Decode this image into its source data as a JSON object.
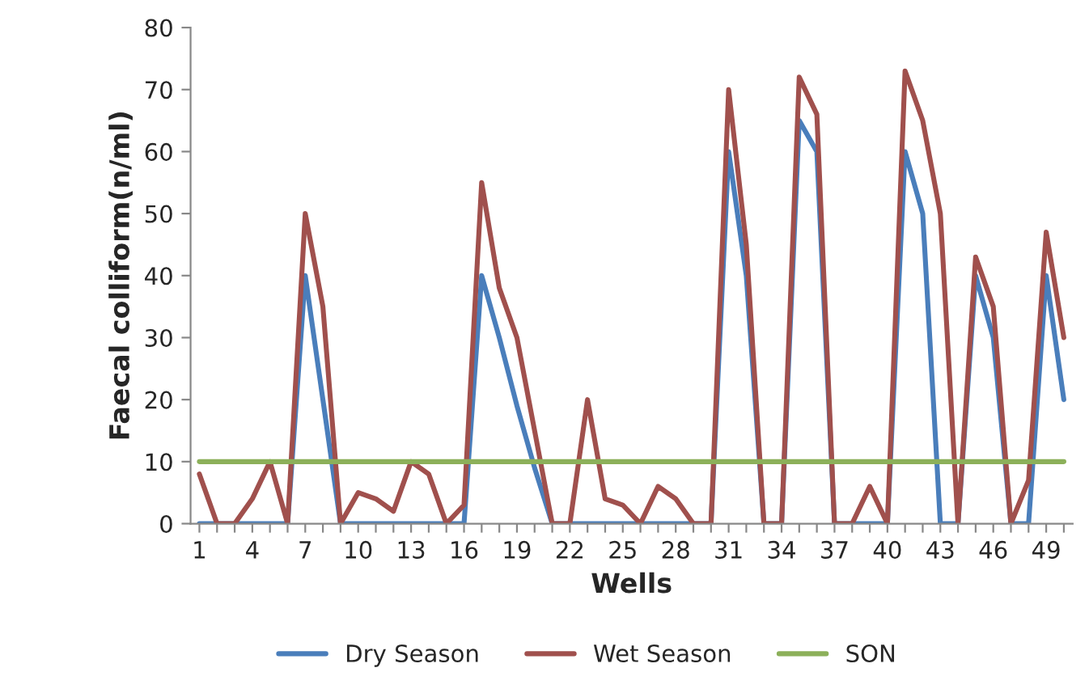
{
  "chart_data": {
    "type": "line",
    "xlabel": "Wells",
    "ylabel": "Faecal colliform(n/ml)",
    "categories": [
      "1",
      null,
      null,
      "4",
      null,
      null,
      "7",
      null,
      null,
      "10",
      null,
      null,
      "13",
      null,
      null,
      "16",
      null,
      null,
      "19",
      null,
      null,
      "22",
      null,
      null,
      "25",
      null,
      null,
      "28",
      null,
      null,
      "31",
      null,
      null,
      "34",
      null,
      null,
      "37",
      null,
      null,
      "40",
      null,
      null,
      "43",
      null,
      null,
      "46",
      null,
      null,
      "49",
      null
    ],
    "series": [
      {
        "name": "Dry Season",
        "color": "#4a7ebb",
        "values": [
          0,
          0,
          0,
          0,
          0,
          0,
          40,
          20,
          0,
          0,
          0,
          0,
          0,
          0,
          0,
          0,
          40,
          30,
          19,
          9,
          0,
          0,
          0,
          0,
          0,
          0,
          0,
          0,
          0,
          0,
          60,
          40,
          0,
          0,
          65,
          60,
          0,
          0,
          0,
          0,
          60,
          50,
          0,
          0,
          40,
          30,
          0,
          0,
          40,
          20
        ]
      },
      {
        "name": "Wet Season",
        "color": "#a0504d",
        "values": [
          8,
          0,
          0,
          4,
          10,
          0,
          50,
          35,
          0,
          5,
          4,
          2,
          10,
          8,
          0,
          3,
          55,
          38,
          30,
          15,
          0,
          0,
          20,
          4,
          3,
          0,
          6,
          4,
          0,
          0,
          70,
          45,
          0,
          0,
          72,
          66,
          0,
          0,
          6,
          0,
          73,
          65,
          50,
          0,
          43,
          35,
          0,
          7,
          47,
          30
        ]
      },
      {
        "name": "SON",
        "color": "#8cb05a",
        "values": [
          10,
          10,
          10,
          10,
          10,
          10,
          10,
          10,
          10,
          10,
          10,
          10,
          10,
          10,
          10,
          10,
          10,
          10,
          10,
          10,
          10,
          10,
          10,
          10,
          10,
          10,
          10,
          10,
          10,
          10,
          10,
          10,
          10,
          10,
          10,
          10,
          10,
          10,
          10,
          10,
          10,
          10,
          10,
          10,
          10,
          10,
          10,
          10,
          10,
          10
        ]
      }
    ],
    "ylim": [
      0,
      80
    ],
    "yticks": [
      0,
      10,
      20,
      30,
      40,
      50,
      60,
      70,
      80
    ],
    "grid": false,
    "legend": "bottom",
    "marker": "none",
    "line_style": "solid"
  }
}
